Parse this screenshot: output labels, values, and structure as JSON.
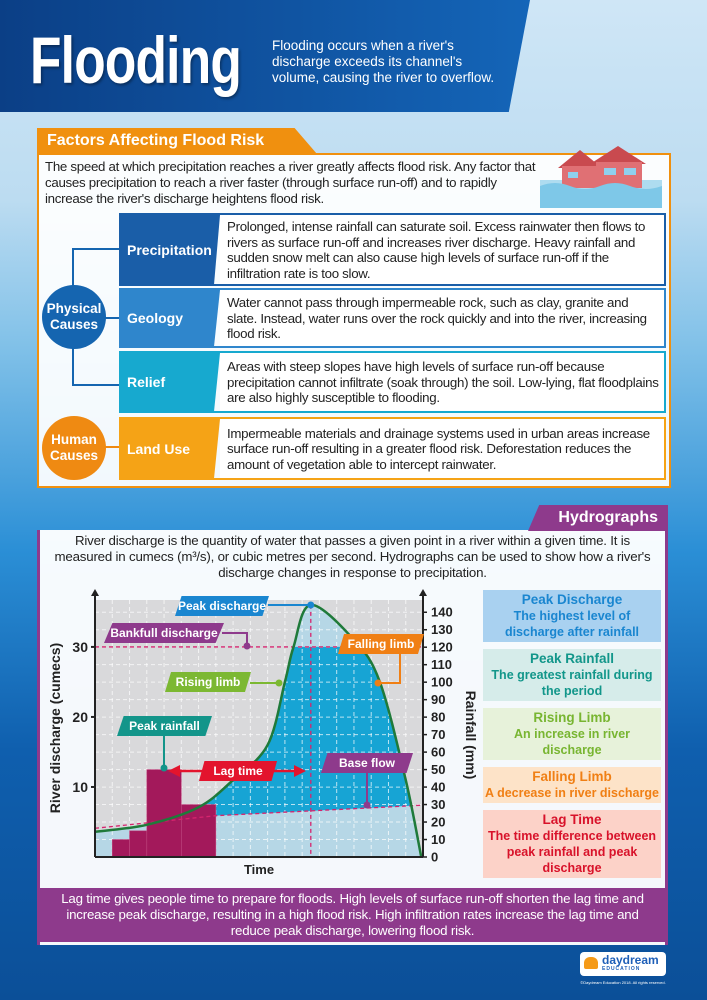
{
  "header": {
    "title": "Flooding",
    "description": "Flooding occurs when a river's discharge exceeds its channel's volume, causing the river to overflow."
  },
  "factors": {
    "title": "Factors Affecting Flood Risk",
    "intro": "The speed at which precipitation reaches a river greatly affects flood risk. Any factor that causes precipitation to reach a river faster (through surface run-off) and to rapidly increase the river's discharge heightens flood risk.",
    "groups": [
      {
        "label": "Physical Causes",
        "color": "#1565b0"
      },
      {
        "label": "Human Causes",
        "color": "#ef8a12"
      }
    ],
    "rows": [
      {
        "label": "Precipitation",
        "text": "Prolonged, intense rainfall can saturate soil. Excess rainwater then flows to rivers as surface run-off and increases river discharge. Heavy rainfall and sudden snow melt can also cause high levels of surface run-off if the infiltration rate is too slow.",
        "color": "#1a5ea8"
      },
      {
        "label": "Geology",
        "text": "Water cannot pass through impermeable rock, such as clay, granite and slate. Instead, water runs over the rock quickly and into the river, increasing flood risk.",
        "color": "#2f86cc"
      },
      {
        "label": "Relief",
        "text": "Areas with steep slopes have high levels of surface run-off because precipitation cannot infiltrate (soak through) the soil. Low-lying, flat floodplains are also highly susceptible to flooding.",
        "color": "#17a9cf"
      },
      {
        "label": "Land Use",
        "text": "Impermeable materials and drainage systems used in urban areas increase surface run-off resulting in a greater flood risk. Deforestation reduces the amount of vegetation able to intercept rainwater.",
        "color": "#f5a316"
      }
    ]
  },
  "hydrographs": {
    "title": "Hydrographs",
    "intro": "River discharge is the quantity of water that passes a given point in a river within a given time. It is measured in cumecs (m³/s), or cubic metres per second. Hydrographs can be used to show how a river's discharge changes in response to precipitation.",
    "legend": [
      {
        "title": "Peak Discharge",
        "desc": "The highest level of discharge after rainfall",
        "color": "#1a86d0",
        "bg": "#a9d1f0"
      },
      {
        "title": "Peak Rainfall",
        "desc": "The greatest rainfall during the period",
        "color": "#12968a",
        "bg": "#d6ecea"
      },
      {
        "title": "Rising Limb",
        "desc": "An increase in river discharge",
        "color": "#78b531",
        "bg": "#e7f2da"
      },
      {
        "title": "Falling Limb",
        "desc": "A decrease in river discharge",
        "color": "#f07f14",
        "bg": "#fde3c8"
      },
      {
        "title": "Lag Time",
        "desc": "The time difference between peak rainfall and peak discharge",
        "color": "#d8122a",
        "bg": "#fcd2c8"
      }
    ],
    "footer": "Lag time gives people time to prepare for floods. High levels of surface run-off shorten the lag time and increase peak discharge, resulting in a high flood risk. High infiltration rates increase the lag time and reduce peak discharge, lowering flood risk."
  },
  "chart_data": {
    "type": "line",
    "xlabel": "Time",
    "ylabel": "River discharge (cumecs)",
    "y2label": "Rainfall (mm)",
    "xlim": [
      0,
      19
    ],
    "ylim": [
      0,
      36.7
    ],
    "y_ticks": [
      10,
      20,
      30
    ],
    "y2lim": [
      0,
      147
    ],
    "y2_ticks": [
      0,
      10,
      20,
      30,
      40,
      50,
      60,
      70,
      80,
      90,
      100,
      110,
      120,
      130,
      140
    ],
    "grid": true,
    "discharge": [
      [
        0,
        3.6
      ],
      [
        3,
        4.6
      ],
      [
        6,
        7.1
      ],
      [
        8,
        11
      ],
      [
        10,
        16
      ],
      [
        11,
        25
      ],
      [
        11.5,
        30
      ],
      [
        12.5,
        36
      ],
      [
        15,
        31
      ],
      [
        16.5,
        25
      ],
      [
        18,
        11
      ],
      [
        18.9,
        0
      ]
    ],
    "rainfall": [
      {
        "x0": 1,
        "x1": 2,
        "value": 10
      },
      {
        "x0": 2,
        "x1": 3,
        "value": 15
      },
      {
        "x0": 3,
        "x1": 5,
        "value": 50
      },
      {
        "x0": 5,
        "x1": 7,
        "value": 30
      }
    ],
    "bankfull_discharge": 30,
    "peak_time": 12.5,
    "base_flow": [
      [
        0,
        4.1
      ],
      [
        7,
        5.9
      ],
      [
        19,
        7.4
      ]
    ],
    "annotations": {
      "peak_discharge": "Peak discharge",
      "bankfull": "Bankfull discharge",
      "rising": "Rising limb",
      "falling": "Falling limb",
      "peak_rainfall": "Peak rainfall",
      "lag": "Lag time",
      "base": "Base flow"
    },
    "colors": {
      "curve": "#1f7a3a",
      "storm": "#17a4d4",
      "light": "#b6d7e6",
      "bars": "#a3195b",
      "dashed": "#d6246e",
      "plot_bg": "#d9d9db"
    }
  },
  "brand": {
    "logo": "daydream",
    "sub": "EDUCATION",
    "copyright": "©Daydream Education 2018. All rights reserved."
  }
}
